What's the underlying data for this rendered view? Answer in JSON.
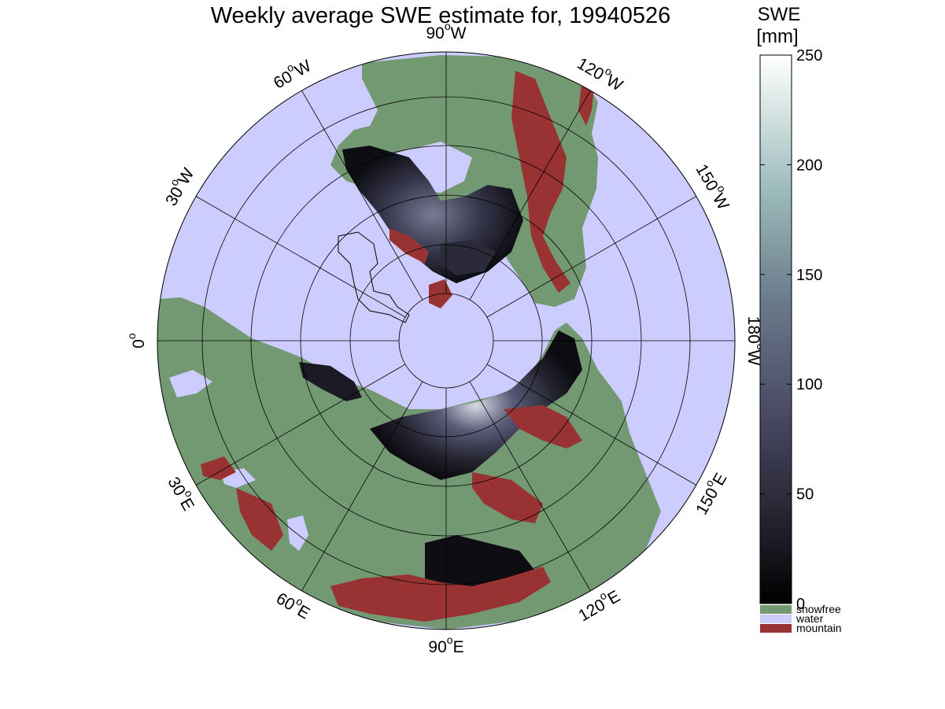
{
  "title": "Weekly average SWE estimate for, 19940526",
  "map": {
    "projection": "north polar stereographic",
    "longitude_labels": [
      {
        "lon": "90",
        "dir": "W"
      },
      {
        "lon": "120",
        "dir": "W"
      },
      {
        "lon": "150",
        "dir": "W"
      },
      {
        "lon": "180",
        "dir": "W"
      },
      {
        "lon": "150",
        "dir": "E"
      },
      {
        "lon": "120",
        "dir": "E"
      },
      {
        "lon": "90",
        "dir": "E"
      },
      {
        "lon": "60",
        "dir": "E"
      },
      {
        "lon": "30",
        "dir": "E"
      },
      {
        "lon": "0",
        "dir": ""
      },
      {
        "lon": "30",
        "dir": "W"
      },
      {
        "lon": "60",
        "dir": "W"
      }
    ],
    "colors": {
      "water": "#ccccff",
      "snowfree": "#739973",
      "mountain": "#993333",
      "snow_low": "#0a0a10",
      "snow_mid": "#4b4b66",
      "snow_high": "#ffffff"
    }
  },
  "colorbar": {
    "title_line1": "SWE",
    "title_line2": "[mm]",
    "ticks": [
      "0",
      "50",
      "100",
      "150",
      "200",
      "250"
    ],
    "min": 0,
    "max": 250,
    "legend": [
      {
        "label": "snowfree",
        "color": "#739973"
      },
      {
        "label": "water",
        "color": "#ccccff"
      },
      {
        "label": "mountain",
        "color": "#993333"
      }
    ]
  }
}
